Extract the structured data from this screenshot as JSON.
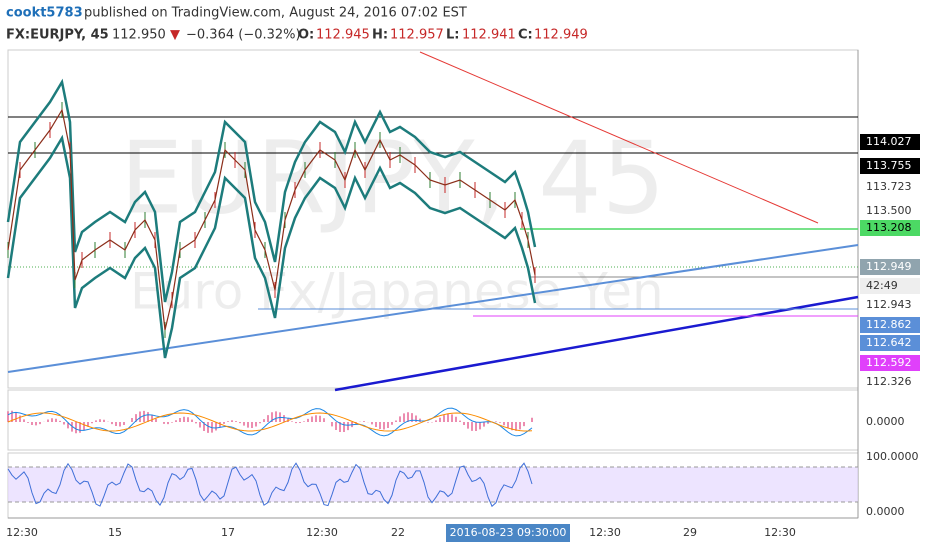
{
  "header": {
    "author": "cookt5783",
    "published": "published on TradingView.com, August 24, 2016 07:02 EST"
  },
  "symbol": {
    "name": "FX:EURJPY, 45",
    "last": "112.950",
    "arrow": "▼",
    "change": "−0.364 (−0.32%)",
    "open_label": "O:",
    "open": "112.945",
    "high_label": "H:",
    "high": "112.957",
    "low_label": "L:",
    "low": "112.941",
    "close_label": "C:",
    "close": "112.949"
  },
  "watermark": {
    "symbol": "EURJPY, 45",
    "description": "Euro Fx/Japanese Yen"
  },
  "price_axis": [
    "114.027",
    "113.755",
    "113.723",
    "113.500",
    "113.208",
    "112.949",
    "42:49",
    "112.943",
    "112.862",
    "112.642",
    "112.592",
    "112.326"
  ],
  "indicator_axes": [
    "0.0000",
    "100.0000",
    "0.0000"
  ],
  "time_axis": [
    "12:30",
    "15",
    "17",
    "12:30",
    "22",
    "2016-08-23 09:30:00",
    "12:30",
    "29",
    "12:30"
  ]
}
